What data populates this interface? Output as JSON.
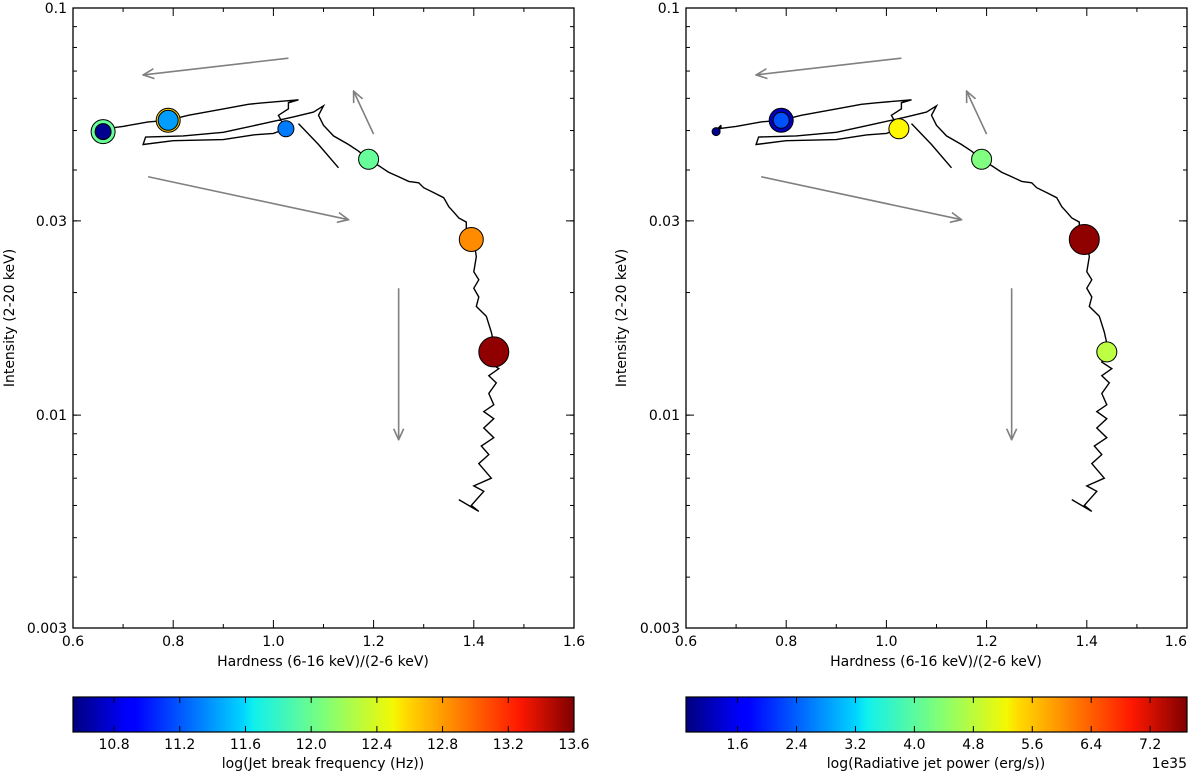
{
  "chart_data": [
    {
      "type": "scatter",
      "panel": "left",
      "xlabel": "Hardness (6-16 keV)/(2-6 keV)",
      "ylabel": "Intensity (2-20 keV)",
      "xscale": "linear",
      "yscale": "log",
      "xlim": [
        0.6,
        1.6
      ],
      "ylim": [
        0.003,
        0.1
      ],
      "x_ticks": [
        0.6,
        0.8,
        1.0,
        1.2,
        1.4,
        1.6
      ],
      "x_tick_labels": [
        "0.6",
        "0.8",
        "1.0",
        "1.2",
        "1.4",
        "1.6"
      ],
      "y_ticks": [
        0.003,
        0.01,
        0.03,
        0.1
      ],
      "y_tick_labels": [
        "0.003",
        "0.01",
        "0.03",
        "0.1"
      ],
      "track": [
        [
          0.655,
          0.0497
        ],
        [
          0.665,
          0.0493
        ],
        [
          0.67,
          0.0515
        ],
        [
          0.663,
          0.0505
        ],
        [
          0.7,
          0.0512
        ],
        [
          0.75,
          0.0525
        ],
        [
          0.79,
          0.053
        ],
        [
          0.83,
          0.0545
        ],
        [
          0.9,
          0.0565
        ],
        [
          0.95,
          0.058
        ],
        [
          0.98,
          0.0585
        ],
        [
          1.05,
          0.0595
        ],
        [
          1.03,
          0.0585
        ],
        [
          1.03,
          0.0565
        ],
        [
          1.01,
          0.0545
        ],
        [
          1.025,
          0.0505
        ],
        [
          1.0,
          0.0492
        ],
        [
          0.96,
          0.0488
        ],
        [
          0.9,
          0.0475
        ],
        [
          0.8,
          0.0472
        ],
        [
          0.74,
          0.0462
        ],
        [
          0.745,
          0.0482
        ],
        [
          0.82,
          0.0485
        ],
        [
          0.9,
          0.0495
        ],
        [
          0.98,
          0.052
        ],
        [
          1.04,
          0.054
        ],
        [
          1.08,
          0.0555
        ],
        [
          1.1,
          0.0575
        ],
        [
          1.09,
          0.0545
        ],
        [
          1.1,
          0.0515
        ],
        [
          1.12,
          0.0485
        ],
        [
          1.15,
          0.0462
        ],
        [
          1.17,
          0.0445
        ],
        [
          1.19,
          0.0425
        ],
        [
          1.21,
          0.041
        ],
        [
          1.23,
          0.0395
        ],
        [
          1.25,
          0.0385
        ],
        [
          1.27,
          0.0375
        ],
        [
          1.29,
          0.0372
        ],
        [
          1.3,
          0.0362
        ],
        [
          1.32,
          0.0352
        ],
        [
          1.34,
          0.0342
        ],
        [
          1.35,
          0.0325
        ],
        [
          1.36,
          0.0315
        ],
        [
          1.37,
          0.0305
        ],
        [
          1.385,
          0.0298
        ],
        [
          1.385,
          0.0285
        ],
        [
          1.4,
          0.027
        ],
        [
          1.405,
          0.0245
        ],
        [
          1.4,
          0.0225
        ],
        [
          1.41,
          0.0215
        ],
        [
          1.4,
          0.0205
        ],
        [
          1.41,
          0.0195
        ],
        [
          1.405,
          0.0185
        ],
        [
          1.425,
          0.0175
        ],
        [
          1.435,
          0.016
        ],
        [
          1.44,
          0.015
        ],
        [
          1.445,
          0.0143
        ],
        [
          1.43,
          0.0135
        ],
        [
          1.45,
          0.013
        ],
        [
          1.43,
          0.0125
        ],
        [
          1.445,
          0.012
        ],
        [
          1.43,
          0.0113
        ],
        [
          1.44,
          0.0106
        ],
        [
          1.42,
          0.0102
        ],
        [
          1.44,
          0.0098
        ],
        [
          1.42,
          0.0093
        ],
        [
          1.44,
          0.0088
        ],
        [
          1.415,
          0.0084
        ],
        [
          1.43,
          0.008
        ],
        [
          1.41,
          0.0076
        ],
        [
          1.435,
          0.007
        ],
        [
          1.4,
          0.0067
        ],
        [
          1.42,
          0.0065
        ],
        [
          1.395,
          0.006
        ],
        [
          1.41,
          0.0058
        ],
        [
          1.37,
          0.0062
        ]
      ],
      "branch": [
        [
          1.13,
          0.0405
        ],
        [
          1.09,
          0.0462
        ],
        [
          1.05,
          0.052
        ]
      ],
      "points": [
        {
          "x": 0.66,
          "y": 0.0497,
          "value": 10.6,
          "size": 1,
          "ring_value": 12.0
        },
        {
          "x": 0.79,
          "y": 0.053,
          "value": 11.4,
          "size": 2,
          "ring_value": 12.6
        },
        {
          "x": 1.025,
          "y": 0.0505,
          "value": 11.3,
          "size": 1
        },
        {
          "x": 1.19,
          "y": 0.0425,
          "value": 12.0,
          "size": 2
        },
        {
          "x": 1.395,
          "y": 0.027,
          "value": 12.8,
          "size": 3
        },
        {
          "x": 1.44,
          "y": 0.0143,
          "value": 13.55,
          "size": 4
        }
      ],
      "arrows": [
        {
          "from": [
            1.03,
            0.0753
          ],
          "to": [
            0.74,
            0.0685
          ]
        },
        {
          "from": [
            1.2,
            0.049
          ],
          "to": [
            1.16,
            0.0625
          ]
        },
        {
          "from": [
            0.75,
            0.0385
          ],
          "to": [
            1.15,
            0.0302
          ]
        },
        {
          "from": [
            1.25,
            0.0205
          ],
          "to": [
            1.25,
            0.0087
          ]
        }
      ],
      "colorbar": {
        "label": "log(Jet break frequency (Hz))",
        "range": [
          10.55,
          13.6
        ],
        "ticks": [
          "10.8",
          "11.2",
          "11.6",
          "12.0",
          "12.4",
          "12.8",
          "13.2",
          "13.6"
        ],
        "offset_text": ""
      }
    },
    {
      "type": "scatter",
      "panel": "right",
      "xlabel": "Hardness (6-16 keV)/(2-6 keV)",
      "ylabel": "Intensity (2-20 keV)",
      "xscale": "linear",
      "yscale": "log",
      "xlim": [
        0.6,
        1.6
      ],
      "ylim": [
        0.003,
        0.1
      ],
      "x_ticks": [
        0.6,
        0.8,
        1.0,
        1.2,
        1.4,
        1.6
      ],
      "x_tick_labels": [
        "0.6",
        "0.8",
        "1.0",
        "1.2",
        "1.4",
        "1.6"
      ],
      "y_ticks": [
        0.003,
        0.01,
        0.03,
        0.1
      ],
      "y_tick_labels": [
        "0.003",
        "0.01",
        "0.03",
        "0.1"
      ],
      "track": [
        [
          0.655,
          0.0497
        ],
        [
          0.665,
          0.0493
        ],
        [
          0.67,
          0.0515
        ],
        [
          0.663,
          0.0505
        ],
        [
          0.7,
          0.0512
        ],
        [
          0.75,
          0.0525
        ],
        [
          0.79,
          0.053
        ],
        [
          0.83,
          0.0545
        ],
        [
          0.9,
          0.0565
        ],
        [
          0.95,
          0.058
        ],
        [
          0.98,
          0.0585
        ],
        [
          1.05,
          0.0595
        ],
        [
          1.03,
          0.0585
        ],
        [
          1.03,
          0.0565
        ],
        [
          1.01,
          0.0545
        ],
        [
          1.025,
          0.0505
        ],
        [
          1.0,
          0.0492
        ],
        [
          0.96,
          0.0488
        ],
        [
          0.9,
          0.0475
        ],
        [
          0.8,
          0.0472
        ],
        [
          0.74,
          0.0462
        ],
        [
          0.745,
          0.0482
        ],
        [
          0.82,
          0.0485
        ],
        [
          0.9,
          0.0495
        ],
        [
          0.98,
          0.052
        ],
        [
          1.04,
          0.054
        ],
        [
          1.08,
          0.0555
        ],
        [
          1.1,
          0.0575
        ],
        [
          1.09,
          0.0545
        ],
        [
          1.1,
          0.0515
        ],
        [
          1.12,
          0.0485
        ],
        [
          1.15,
          0.0462
        ],
        [
          1.17,
          0.0445
        ],
        [
          1.19,
          0.0425
        ],
        [
          1.21,
          0.041
        ],
        [
          1.23,
          0.0395
        ],
        [
          1.25,
          0.0385
        ],
        [
          1.27,
          0.0375
        ],
        [
          1.29,
          0.0372
        ],
        [
          1.3,
          0.0362
        ],
        [
          1.32,
          0.0352
        ],
        [
          1.34,
          0.0342
        ],
        [
          1.35,
          0.0325
        ],
        [
          1.36,
          0.0315
        ],
        [
          1.37,
          0.0305
        ],
        [
          1.385,
          0.0298
        ],
        [
          1.385,
          0.0285
        ],
        [
          1.4,
          0.027
        ],
        [
          1.405,
          0.0245
        ],
        [
          1.4,
          0.0225
        ],
        [
          1.41,
          0.0215
        ],
        [
          1.4,
          0.0205
        ],
        [
          1.41,
          0.0195
        ],
        [
          1.405,
          0.0185
        ],
        [
          1.425,
          0.0175
        ],
        [
          1.435,
          0.016
        ],
        [
          1.44,
          0.015
        ],
        [
          1.445,
          0.0143
        ],
        [
          1.43,
          0.0135
        ],
        [
          1.45,
          0.013
        ],
        [
          1.43,
          0.0125
        ],
        [
          1.445,
          0.012
        ],
        [
          1.43,
          0.0113
        ],
        [
          1.44,
          0.0106
        ],
        [
          1.42,
          0.0102
        ],
        [
          1.44,
          0.0098
        ],
        [
          1.42,
          0.0093
        ],
        [
          1.44,
          0.0088
        ],
        [
          1.415,
          0.0084
        ],
        [
          1.43,
          0.008
        ],
        [
          1.41,
          0.0076
        ],
        [
          1.435,
          0.007
        ],
        [
          1.4,
          0.0067
        ],
        [
          1.42,
          0.0065
        ],
        [
          1.395,
          0.006
        ],
        [
          1.41,
          0.0058
        ],
        [
          1.37,
          0.0062
        ]
      ],
      "branch": [
        [
          1.13,
          0.0405
        ],
        [
          1.09,
          0.0462
        ],
        [
          1.05,
          0.052
        ]
      ],
      "points": [
        {
          "x": 0.66,
          "y": 0.0497,
          "value": 1.0,
          "size": 0
        },
        {
          "x": 0.79,
          "y": 0.053,
          "value": 2.3,
          "size": 1,
          "ring_value": 1.3
        },
        {
          "x": 1.025,
          "y": 0.0505,
          "value": 5.2,
          "size": 2
        },
        {
          "x": 1.19,
          "y": 0.0425,
          "value": 4.3,
          "size": 2
        },
        {
          "x": 1.395,
          "y": 0.027,
          "value": 7.6,
          "size": 4
        },
        {
          "x": 1.44,
          "y": 0.0143,
          "value": 4.7,
          "size": 2
        }
      ],
      "arrows": [
        {
          "from": [
            1.03,
            0.0753
          ],
          "to": [
            0.74,
            0.0685
          ]
        },
        {
          "from": [
            1.2,
            0.049
          ],
          "to": [
            1.16,
            0.0625
          ]
        },
        {
          "from": [
            0.75,
            0.0385
          ],
          "to": [
            1.15,
            0.0302
          ]
        },
        {
          "from": [
            1.25,
            0.0205
          ],
          "to": [
            1.25,
            0.0087
          ]
        }
      ],
      "colorbar": {
        "label": "log(Radiative jet power (erg/s))",
        "range": [
          0.9,
          7.7
        ],
        "ticks": [
          "1.6",
          "2.4",
          "3.2",
          "4.0",
          "4.8",
          "5.6",
          "6.4",
          "7.2"
        ],
        "offset_text": "1e35"
      }
    }
  ]
}
